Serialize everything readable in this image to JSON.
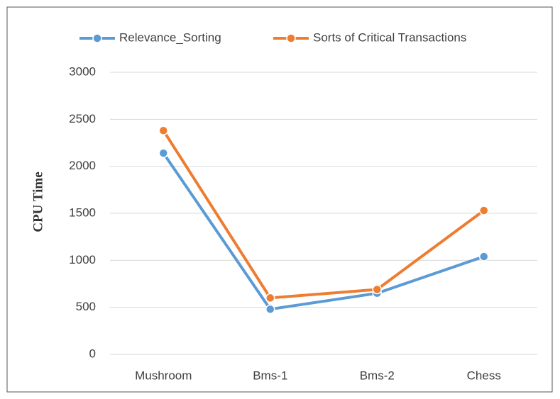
{
  "chart_data": {
    "type": "line",
    "y_label": "CPU Time",
    "categories": [
      "Mushroom",
      "Bms-1",
      "Bms-2",
      "Chess"
    ],
    "series": [
      {
        "name": "Relevance_Sorting",
        "color": "#5b9bd5",
        "values": [
          2140,
          480,
          650,
          1040
        ]
      },
      {
        "name": "Sorts of Critical Transactions",
        "color": "#ed7d31",
        "values": [
          2380,
          600,
          690,
          1530
        ]
      }
    ],
    "ylim": [
      0,
      3000
    ],
    "yticks": [
      0,
      500,
      1000,
      1500,
      2000,
      2500,
      3000
    ],
    "grid": true,
    "legend": "top"
  }
}
